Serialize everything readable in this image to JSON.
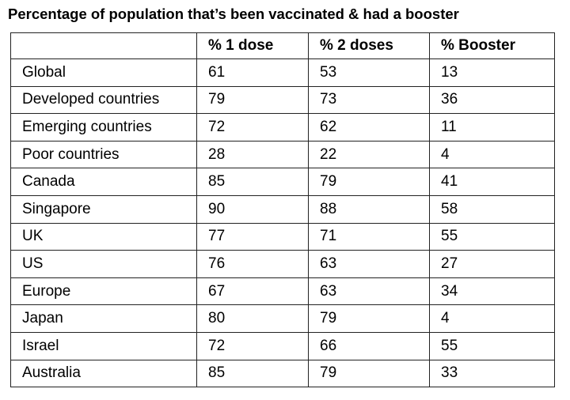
{
  "chart_data": {
    "type": "table",
    "title": "Percentage of population that’s been vaccinated & had a booster",
    "columns": [
      "",
      "% 1 dose",
      "% 2 doses",
      "% Booster"
    ],
    "rows": [
      [
        "Global",
        "61",
        "53",
        "13"
      ],
      [
        "Developed countries",
        "79",
        "73",
        "36"
      ],
      [
        "Emerging countries",
        "72",
        "62",
        "11"
      ],
      [
        "Poor countries",
        "28",
        "22",
        "4"
      ],
      [
        "Canada",
        "85",
        "79",
        "41"
      ],
      [
        "Singapore",
        "90",
        "88",
        "58"
      ],
      [
        "UK",
        "77",
        "71",
        "55"
      ],
      [
        "US",
        "76",
        "63",
        "27"
      ],
      [
        "Europe",
        "67",
        "63",
        "34"
      ],
      [
        "Japan",
        "80",
        "79",
        "4"
      ],
      [
        "Israel",
        "72",
        "66",
        "55"
      ],
      [
        "Australia",
        "85",
        "79",
        "33"
      ]
    ]
  }
}
